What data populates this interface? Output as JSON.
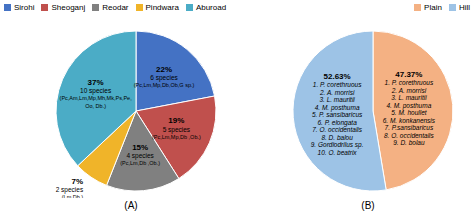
{
  "chart_data": [
    {
      "type": "pie",
      "title": "(A)",
      "categories": [
        "Sirohi",
        "Sheoganj",
        "Reodar",
        "Pindwara",
        "Aburoad"
      ],
      "values": [
        22,
        19,
        15,
        7,
        37
      ],
      "colors": [
        "#4472c4",
        "#c0504d",
        "#808080",
        "#f0b429",
        "#4bacc6"
      ],
      "data_labels": true,
      "value_labels": [
        "22%",
        "19%",
        "15%",
        "7%",
        "37%"
      ],
      "annotations": [
        [
          "6 species",
          "(Pc,Lm,Mp,Db,Ob,G sp.)"
        ],
        [
          "5 species",
          "(Pc,Lm,Mp,Db ,Ob.)"
        ],
        [
          "4 species",
          "(Pc,Lm,Db ,Ob.)"
        ],
        [
          "2 species",
          "(Lm,Db.)"
        ],
        [
          "10 species",
          "(Pc,Am,Lm,Mp,Mh,Mk,Ps,Pe,",
          "Oo, Db.)"
        ]
      ],
      "legend": "upper left"
    },
    {
      "type": "pie",
      "title": "(B)",
      "categories": [
        "Plain",
        "Hill"
      ],
      "values": [
        47.37,
        52.63
      ],
      "colors": [
        "#f4b183",
        "#9dc3e6"
      ],
      "data_labels": true,
      "value_labels": [
        "47.37%",
        "52.63%"
      ],
      "annotations": [
        [
          "1. P. corethruous",
          "2. A. morrisi",
          "3. L. mauritii",
          "4. M. posthuma",
          "5. M. houllet",
          "6. M. konkanensis",
          "7. P.sansibaricus",
          "8. O. occidentalis",
          "9. D. bolau"
        ],
        [
          "1. P. corethruous",
          "2. A. morrisi",
          "3. L. mauritii",
          "4. M. posthuma",
          "5. P. sansibaricus",
          "6. P. elongata",
          "7. O. occidentalis",
          "8. D. balou",
          "9. Gordiodrilus sp.",
          "10. O. beatrix"
        ]
      ],
      "legend": "upper right"
    }
  ]
}
